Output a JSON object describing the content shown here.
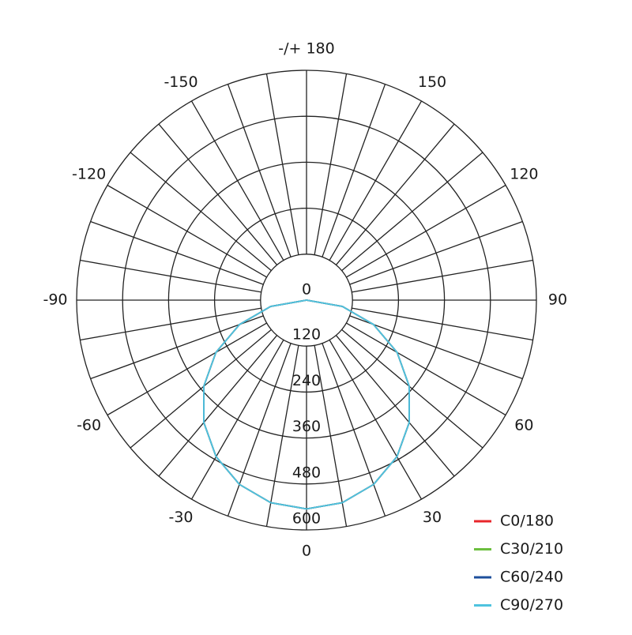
{
  "chart_data": {
    "type": "polar",
    "theta": [
      -90,
      -80,
      -70,
      -60,
      -50,
      -40,
      -30,
      -20,
      -10,
      0,
      10,
      20,
      30,
      40,
      50,
      60,
      70,
      80,
      90
    ],
    "series": [
      {
        "name": "C0/180",
        "color": "#e8262b",
        "values": [
          0,
          95,
          186,
          273,
          350,
          417,
          472,
          512,
          537,
          545,
          537,
          512,
          472,
          417,
          350,
          273,
          186,
          95,
          0
        ]
      },
      {
        "name": "C30/210",
        "color": "#6cbf3f",
        "values": [
          0,
          95,
          186,
          273,
          350,
          417,
          472,
          512,
          537,
          545,
          537,
          512,
          472,
          417,
          350,
          273,
          186,
          95,
          0
        ]
      },
      {
        "name": "C60/240",
        "color": "#1d4f9c",
        "values": [
          0,
          95,
          186,
          273,
          350,
          417,
          472,
          512,
          537,
          545,
          537,
          512,
          472,
          417,
          350,
          273,
          186,
          95,
          0
        ]
      },
      {
        "name": "C90/270",
        "color": "#4fc3df",
        "values": [
          0,
          95,
          186,
          273,
          350,
          417,
          472,
          512,
          537,
          545,
          537,
          512,
          472,
          417,
          350,
          273,
          186,
          95,
          0
        ]
      }
    ],
    "rlim": [
      0,
      600
    ],
    "rticks": [
      0,
      120,
      240,
      360,
      480,
      600
    ],
    "thetaticks": [
      -150,
      -120,
      -90,
      -60,
      -30,
      0,
      30,
      60,
      90,
      120,
      150,
      {
        "value": 180,
        "label": "-/+ 180"
      }
    ],
    "theta_gridlines": [
      -170,
      -160,
      -150,
      -140,
      -130,
      -120,
      -110,
      -100,
      -90,
      -80,
      -70,
      -60,
      -50,
      -40,
      -30,
      -20,
      -10,
      0,
      10,
      20,
      30,
      40,
      50,
      60,
      70,
      80,
      90,
      100,
      110,
      120,
      130,
      140,
      150,
      160,
      170,
      180
    ],
    "legend": "bottom-right"
  }
}
